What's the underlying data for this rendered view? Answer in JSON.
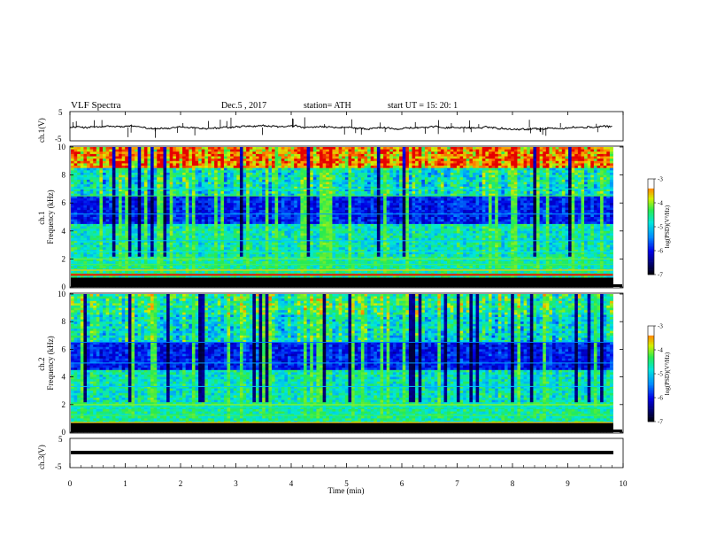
{
  "header": {
    "title": "VLF  Spectra",
    "date": "Dec.5  , 2017",
    "station": "station= ATH",
    "start": "start  UT  =    15: 20: 1"
  },
  "chart_data": [
    {
      "type": "line",
      "ylabel": "ch.1(V)",
      "ylim": [
        -5,
        5
      ],
      "yticks": [
        "5",
        "-5"
      ],
      "xlim": [
        0,
        10
      ],
      "mean_level": 0
    },
    {
      "type": "heatmap",
      "ylabel": "ch.1\nFrequency (kHz)",
      "ylabel_lines": [
        "ch.1",
        "Frequency  (kHz)"
      ],
      "ylim": [
        0,
        10
      ],
      "yticks": [
        "0",
        "2",
        "4",
        "6",
        "8",
        "10"
      ],
      "xlim": [
        0,
        10
      ],
      "colorbar": {
        "label": "log(PSD)(V²/Hz)",
        "range": [
          -7,
          -3
        ],
        "ticks": [
          "-3",
          "-4",
          "-5",
          "-6",
          "-7"
        ]
      }
    },
    {
      "type": "heatmap",
      "ylabel": "ch.2\nFrequency (kHz)",
      "ylabel_lines": [
        "ch.2",
        "Frequency  (kHz)"
      ],
      "ylim": [
        0,
        10
      ],
      "yticks": [
        "0",
        "2",
        "4",
        "6",
        "8",
        "10"
      ],
      "xlim": [
        0,
        10
      ],
      "colorbar": {
        "label": "log(PSD)(V²/Hz)",
        "range": [
          -7,
          -3
        ],
        "ticks": [
          "-3",
          "-4",
          "-5",
          "-6",
          "-7"
        ]
      }
    },
    {
      "type": "line",
      "ylabel": "ch.3(V)",
      "ylim": [
        -5,
        5
      ],
      "yticks": [
        "5",
        "-5"
      ],
      "xlim": [
        0,
        10
      ],
      "xticks": [
        "0",
        "1",
        "2",
        "3",
        "4",
        "5",
        "6",
        "7",
        "8",
        "9",
        "10"
      ],
      "xlabel": "Time  (min)",
      "flat_level": 0
    }
  ]
}
